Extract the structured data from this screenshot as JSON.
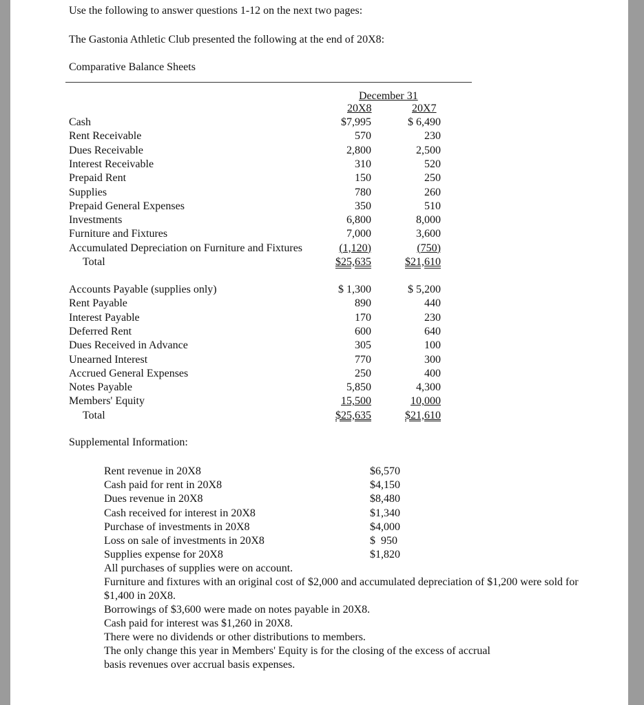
{
  "intro": "Use the following to answer questions 1-12 on the next two pages:",
  "subtitle": "The Gastonia Athletic Club presented the following at the end of 20X8:",
  "section_title": "Comparative Balance Sheets",
  "table": {
    "header": "December 31",
    "columns": [
      "20X8",
      "20X7"
    ],
    "assets": [
      {
        "label": "Cash",
        "c1": "$7,995",
        "c2": "$ 6,490"
      },
      {
        "label": "Rent Receivable",
        "c1": "570",
        "c2": "230"
      },
      {
        "label": "Dues Receivable",
        "c1": "2,800",
        "c2": "2,500"
      },
      {
        "label": "Interest Receivable",
        "c1": "310",
        "c2": "520"
      },
      {
        "label": "Prepaid Rent",
        "c1": "150",
        "c2": "250"
      },
      {
        "label": "Supplies",
        "c1": "780",
        "c2": "260"
      },
      {
        "label": "Prepaid General Expenses",
        "c1": "350",
        "c2": "510"
      },
      {
        "label": "Investments",
        "c1": "6,800",
        "c2": "8,000"
      },
      {
        "label": "Furniture and Fixtures",
        "c1": "7,000",
        "c2": "3,600"
      },
      {
        "label": "Accumulated Depreciation on Furniture and Fixtures",
        "c1": "(1,120)",
        "c2": "(750)",
        "style": "u"
      },
      {
        "label": "Total",
        "c1": "$25,635",
        "c2": "$21,610",
        "style": "uu",
        "indent": true
      }
    ],
    "liabilities": [
      {
        "label": "Accounts Payable (supplies only)",
        "c1": "$ 1,300",
        "c2": "$ 5,200"
      },
      {
        "label": "Rent Payable",
        "c1": "890",
        "c2": "440"
      },
      {
        "label": "Interest Payable",
        "c1": "170",
        "c2": "230"
      },
      {
        "label": "Deferred Rent",
        "c1": "600",
        "c2": "640"
      },
      {
        "label": "Dues Received in Advance",
        "c1": "305",
        "c2": "100"
      },
      {
        "label": "Unearned Interest",
        "c1": "770",
        "c2": "300"
      },
      {
        "label": "Accrued General Expenses",
        "c1": "250",
        "c2": "400"
      },
      {
        "label": "Notes Payable",
        "c1": "5,850",
        "c2": "4,300"
      },
      {
        "label": "Members' Equity",
        "c1": "15,500",
        "c2": "10,000",
        "style": "u"
      },
      {
        "label": "Total",
        "c1": "$25,635",
        "c2": "$21,610",
        "style": "uu",
        "indent": true
      }
    ]
  },
  "supplemental": {
    "title": "Supplemental Information:",
    "items": [
      {
        "label": "Rent revenue in 20X8",
        "value": "$6,570"
      },
      {
        "label": "Cash paid for rent in 20X8",
        "value": "$4,150"
      },
      {
        "label": "Dues revenue in 20X8",
        "value": "$8,480"
      },
      {
        "label": "Cash received for interest in 20X8",
        "value": "$1,340"
      },
      {
        "label": "Purchase of investments in 20X8",
        "value": "$4,000"
      },
      {
        "label": "Loss on sale of investments in 20X8",
        "value": "$  950"
      },
      {
        "label": "Supplies expense for 20X8",
        "value": "$1,820"
      }
    ],
    "notes": [
      "All purchases of supplies were on account.",
      "Furniture and fixtures with an original cost of $2,000 and accumulated depreciation of $1,200 were sold for $1,400 in 20X8.",
      "Borrowings of $3,600 were made on notes payable in 20X8.",
      "Cash paid for interest was $1,260 in 20X8.",
      "There were no dividends or other distributions to members.",
      "The only change this year in Members' Equity is for the closing of the excess of accrual basis revenues over accrual basis expenses."
    ]
  }
}
